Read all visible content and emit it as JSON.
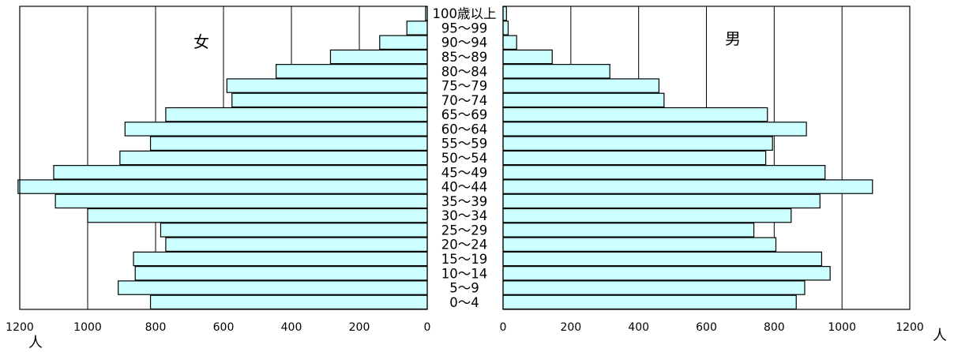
{
  "chart_data": {
    "type": "bar",
    "orientation": "horizontal",
    "layout": "population-pyramid",
    "categories": [
      "0〜4",
      "5〜9",
      "10〜14",
      "15〜19",
      "20〜24",
      "25〜29",
      "30〜34",
      "35〜39",
      "40〜44",
      "45〜49",
      "50〜54",
      "55〜59",
      "60〜64",
      "65〜69",
      "70〜74",
      "75〜79",
      "80〜84",
      "85〜89",
      "90〜94",
      "95〜99",
      "100歳以上"
    ],
    "series": [
      {
        "name": "女",
        "side": "left",
        "values": [
          815,
          910,
          860,
          865,
          770,
          785,
          1000,
          1095,
          1205,
          1100,
          905,
          815,
          890,
          770,
          575,
          590,
          445,
          285,
          140,
          60,
          5
        ]
      },
      {
        "name": "男",
        "side": "right",
        "values": [
          865,
          890,
          965,
          940,
          805,
          740,
          850,
          935,
          1090,
          950,
          775,
          795,
          895,
          780,
          475,
          460,
          315,
          145,
          40,
          15,
          10
        ]
      }
    ],
    "xlim": [
      0,
      1200
    ],
    "ticks": [
      0,
      200,
      400,
      600,
      800,
      1000,
      1200
    ],
    "unit_label": "人",
    "grid": true,
    "bar_color": "#ccffff"
  }
}
